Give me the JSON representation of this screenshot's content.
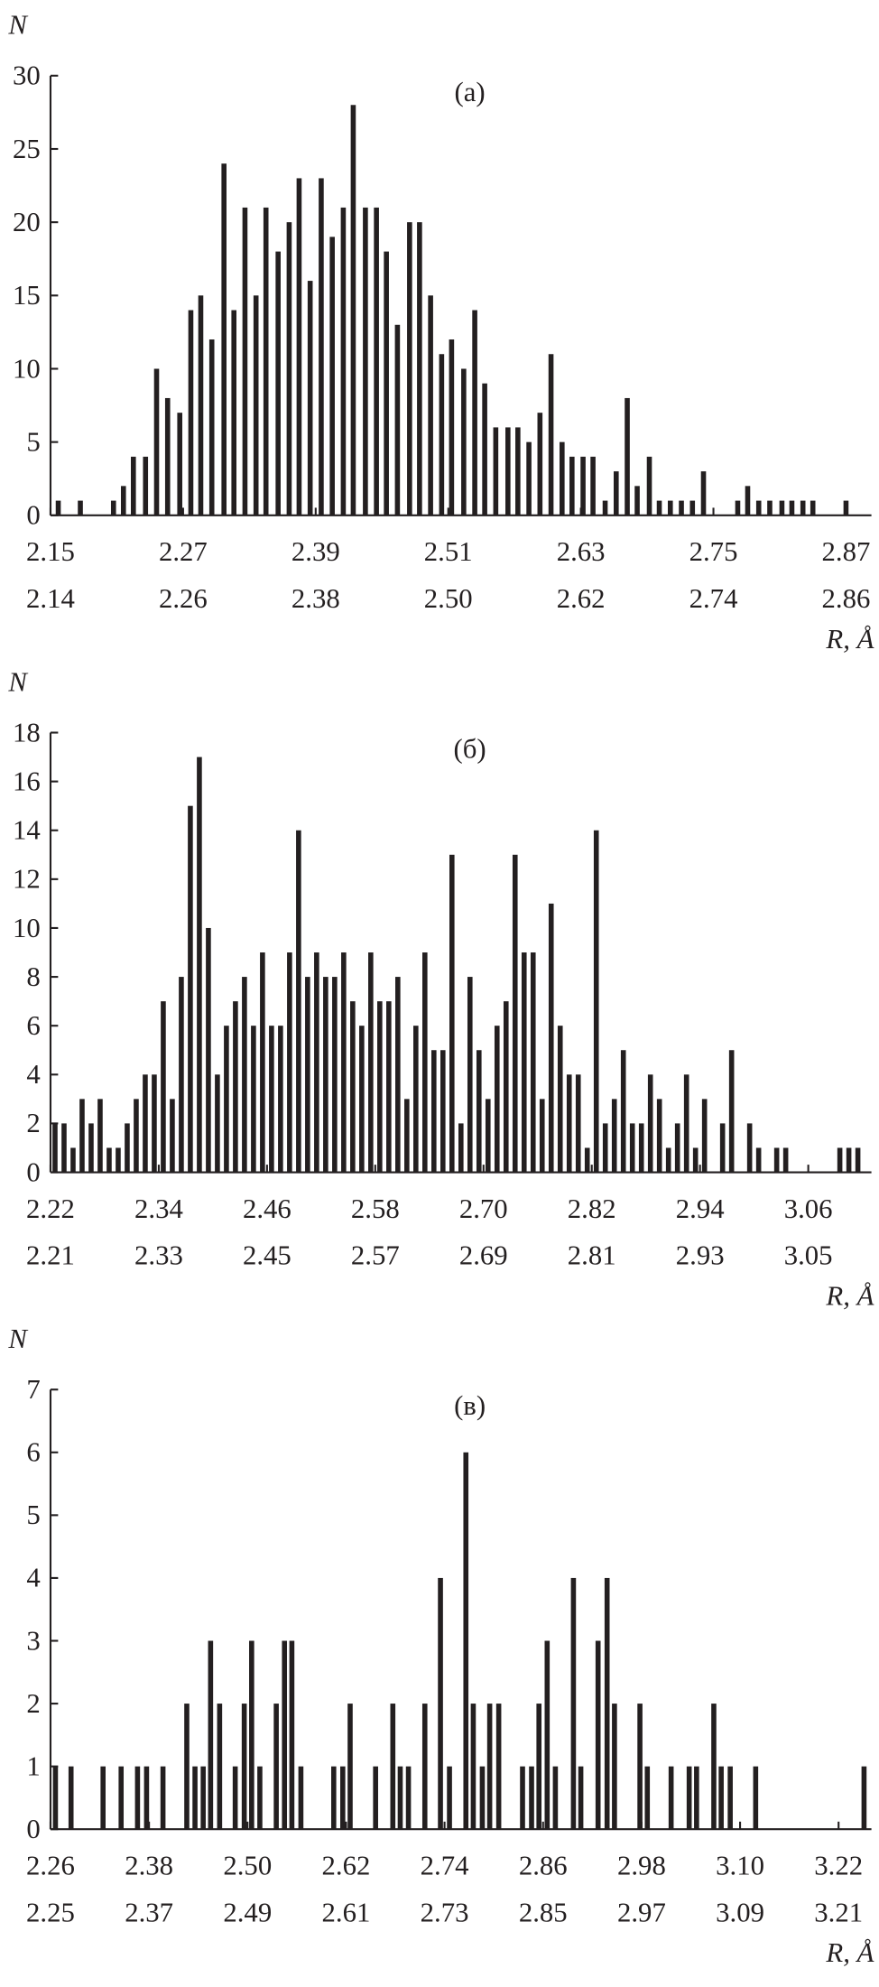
{
  "chart_data": [
    {
      "type": "bar",
      "title": "(а)",
      "y_label": "N",
      "x_label": "R, Å",
      "color": "#231f20",
      "x": [
        2.157,
        2.177,
        2.207,
        2.216,
        2.225,
        2.236,
        2.246,
        2.256,
        2.267,
        2.277,
        2.286,
        2.296,
        2.307,
        2.316,
        2.326,
        2.336,
        2.345,
        2.356,
        2.366,
        2.375,
        2.385,
        2.395,
        2.405,
        2.415,
        2.424,
        2.435,
        2.445,
        2.454,
        2.464,
        2.475,
        2.484,
        2.494,
        2.504,
        2.513,
        2.524,
        2.534,
        2.543,
        2.553,
        2.564,
        2.573,
        2.583,
        2.593,
        2.603,
        2.613,
        2.622,
        2.632,
        2.641,
        2.652,
        2.662,
        2.672,
        2.681,
        2.692,
        2.701,
        2.711,
        2.721,
        2.731,
        2.741,
        2.772,
        2.781,
        2.791,
        2.801,
        2.812,
        2.821,
        2.831,
        2.84,
        2.87
      ],
      "values": [
        1,
        1,
        1,
        2,
        4,
        4,
        10,
        8,
        7,
        14,
        15,
        12,
        24,
        14,
        21,
        15,
        21,
        18,
        20,
        23,
        16,
        23,
        19,
        21,
        28,
        21,
        21,
        18,
        13,
        20,
        20,
        15,
        11,
        12,
        10,
        14,
        9,
        6,
        6,
        6,
        5,
        7,
        11,
        5,
        4,
        4,
        4,
        1,
        3,
        8,
        2,
        4,
        1,
        1,
        1,
        1,
        3,
        1,
        2,
        1,
        1,
        1,
        1,
        1,
        1,
        1
      ],
      "xlim": [
        2.15,
        2.893
      ],
      "ylim": [
        0,
        30
      ],
      "yticks": [
        0,
        5,
        10,
        15,
        20,
        25,
        30
      ],
      "xticks": [
        2.15,
        2.27,
        2.39,
        2.51,
        2.63,
        2.75,
        2.87
      ],
      "xtick_lower_labels": [
        "2.14",
        "2.26",
        "2.38",
        "2.50",
        "2.62",
        "2.74",
        "2.86"
      ]
    },
    {
      "type": "bar",
      "title": "(б)",
      "y_label": "N",
      "x_label": "R, Å",
      "color": "#231f20",
      "x": [
        2.225,
        2.235,
        2.245,
        2.255,
        2.265,
        2.275,
        2.285,
        2.295,
        2.305,
        2.315,
        2.325,
        2.335,
        2.345,
        2.355,
        2.365,
        2.375,
        2.385,
        2.395,
        2.405,
        2.415,
        2.425,
        2.435,
        2.445,
        2.455,
        2.465,
        2.475,
        2.485,
        2.495,
        2.505,
        2.515,
        2.525,
        2.535,
        2.545,
        2.555,
        2.565,
        2.575,
        2.585,
        2.595,
        2.605,
        2.615,
        2.625,
        2.635,
        2.645,
        2.655,
        2.665,
        2.675,
        2.685,
        2.695,
        2.705,
        2.715,
        2.725,
        2.735,
        2.745,
        2.755,
        2.765,
        2.775,
        2.785,
        2.795,
        2.805,
        2.815,
        2.825,
        2.835,
        2.845,
        2.855,
        2.865,
        2.875,
        2.885,
        2.895,
        2.905,
        2.915,
        2.925,
        2.935,
        2.945,
        2.965,
        2.975,
        2.995,
        3.005,
        3.025,
        3.035,
        3.095,
        3.105,
        3.115
      ],
      "values": [
        2,
        2,
        1,
        3,
        2,
        3,
        1,
        1,
        2,
        3,
        4,
        4,
        7,
        3,
        8,
        15,
        17,
        10,
        4,
        6,
        7,
        8,
        6,
        9,
        6,
        6,
        9,
        14,
        8,
        9,
        8,
        8,
        9,
        7,
        6,
        9,
        7,
        7,
        8,
        3,
        6,
        9,
        5,
        5,
        13,
        2,
        8,
        5,
        3,
        6,
        7,
        13,
        9,
        9,
        3,
        11,
        6,
        4,
        4,
        1,
        14,
        2,
        3,
        5,
        2,
        2,
        4,
        3,
        1,
        2,
        4,
        1,
        3,
        2,
        5,
        2,
        1,
        1,
        1,
        1,
        1,
        1
      ],
      "xlim": [
        2.22,
        3.13
      ],
      "ylim": [
        0,
        18
      ],
      "yticks": [
        0,
        2,
        4,
        6,
        8,
        10,
        12,
        14,
        16,
        18
      ],
      "xticks": [
        2.22,
        2.34,
        2.46,
        2.58,
        {
          "value": 2.7,
          "label": "2.70"
        },
        2.82,
        2.94,
        3.06
      ],
      "xtick_lower_labels": [
        "2.21",
        "2.33",
        "2.45",
        "2.57",
        "2.69",
        "2.81",
        "2.93",
        "3.05"
      ]
    },
    {
      "type": "bar",
      "title": "(в)",
      "y_label": "N",
      "x_label": "R, Å",
      "color": "#231f20",
      "x": [
        2.266,
        2.285,
        2.324,
        2.346,
        2.366,
        2.377,
        2.397,
        2.426,
        2.436,
        2.446,
        2.455,
        2.466,
        2.485,
        2.496,
        2.505,
        2.515,
        2.535,
        2.545,
        2.554,
        2.565,
        2.605,
        2.616,
        2.625,
        2.656,
        2.677,
        2.686,
        2.696,
        2.716,
        2.735,
        2.746,
        2.766,
        2.775,
        2.786,
        2.795,
        2.806,
        2.835,
        2.846,
        2.855,
        2.865,
        2.875,
        2.897,
        2.906,
        2.927,
        2.938,
        2.947,
        2.978,
        2.987,
        3.016,
        3.038,
        3.047,
        3.068,
        3.077,
        3.088,
        3.119,
        3.251
      ],
      "values": [
        1,
        1,
        1,
        1,
        1,
        1,
        1,
        2,
        1,
        1,
        3,
        2,
        1,
        2,
        3,
        1,
        2,
        3,
        3,
        1,
        1,
        1,
        2,
        1,
        2,
        1,
        1,
        2,
        4,
        1,
        6,
        2,
        1,
        2,
        2,
        1,
        1,
        2,
        3,
        1,
        4,
        1,
        3,
        4,
        2,
        2,
        1,
        1,
        1,
        1,
        2,
        1,
        1,
        1,
        1
      ],
      "xlim": [
        2.26,
        3.26
      ],
      "ylim": [
        0,
        7
      ],
      "yticks": [
        0,
        1,
        2,
        3,
        4,
        5,
        6,
        7
      ],
      "xticks": [
        2.26,
        2.38,
        {
          "value": 2.5,
          "label": "2.50"
        },
        2.62,
        2.74,
        2.86,
        2.98,
        {
          "value": 3.1,
          "label": "3.10"
        },
        3.22
      ],
      "xtick_lower_labels": [
        "2.25",
        "2.37",
        "2.49",
        "2.61",
        "2.73",
        "2.85",
        "2.97",
        "3.09",
        "3.21"
      ]
    }
  ]
}
